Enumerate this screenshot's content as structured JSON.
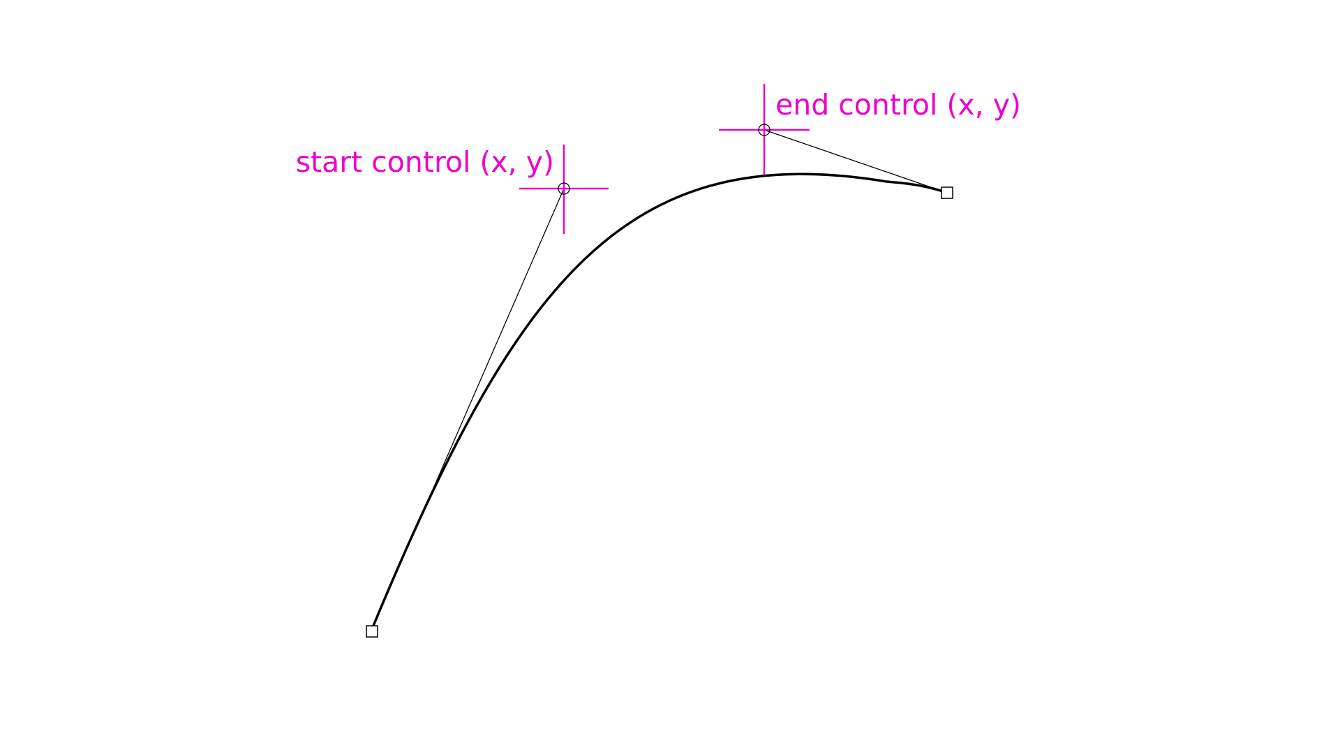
{
  "colors": {
    "accent": "#ee00cc",
    "curve": "#000000",
    "handle_line": "#000000",
    "anchor_fill": "#ffffff",
    "background": "#ffffff"
  },
  "labels": {
    "start_control": "start control (x, y)",
    "end_control": "end control (x, y)"
  },
  "icons": {
    "anchor": "square-anchor-icon",
    "control": "crosshair-circle-icon"
  }
}
